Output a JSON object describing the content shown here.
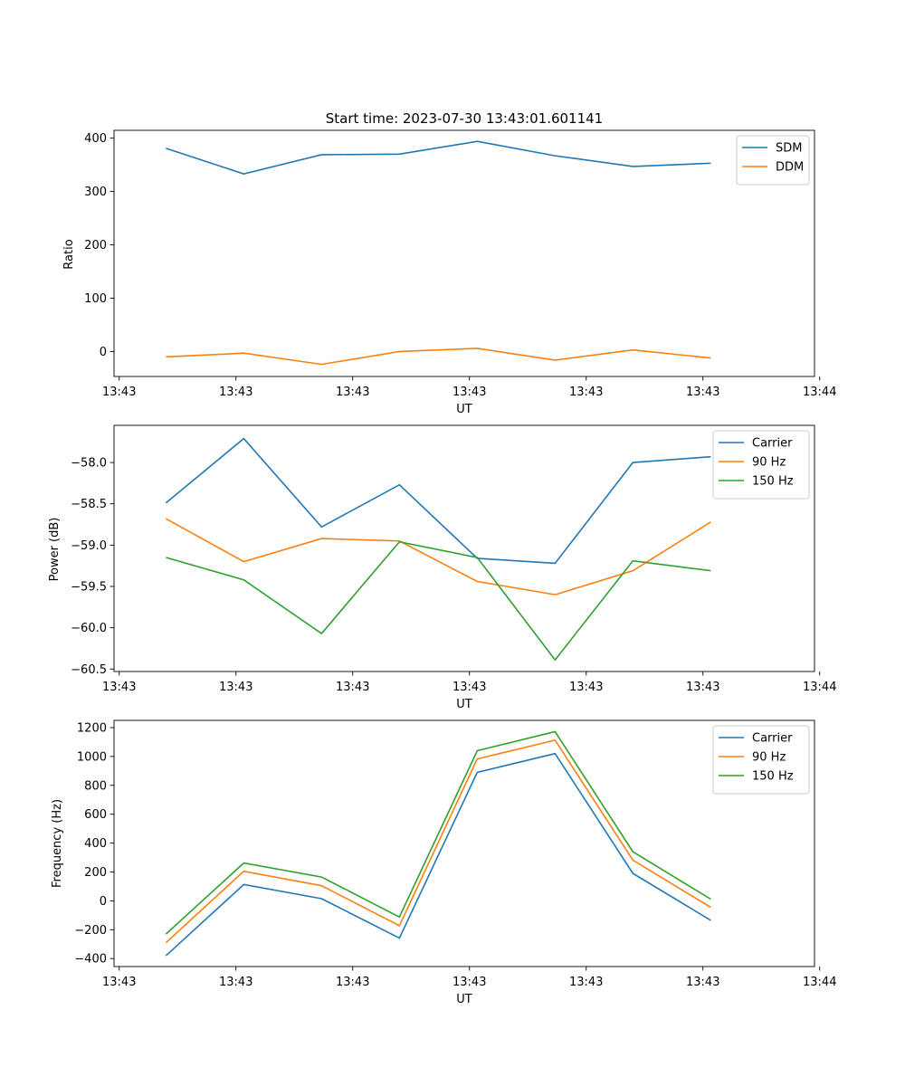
{
  "colors": {
    "blue": "#1f77b4",
    "orange": "#ff7f0e",
    "green": "#2ca02c"
  },
  "chart_data": [
    {
      "type": "line",
      "title": "Start time: 2023-07-30 13:43:01.601141",
      "xlabel": "UT",
      "ylabel": "Ratio",
      "x": [
        1,
        2,
        3,
        4,
        5,
        6,
        7,
        8
      ],
      "xlim": [
        0.3333,
        9.3333
      ],
      "xticks": [
        0.4,
        1.9,
        3.4,
        4.9,
        6.4,
        7.9,
        9.4
      ],
      "xtick_labels": [
        "13:43",
        "13:43",
        "13:43",
        "13:43",
        "13:43",
        "13:43",
        "13:44"
      ],
      "ylim": [
        -46.7,
        414.7
      ],
      "yticks": [
        0,
        100,
        200,
        300,
        400
      ],
      "ytick_labels": [
        "0",
        "100",
        "200",
        "300",
        "400"
      ],
      "legend": "top-right",
      "series": [
        {
          "name": "SDM",
          "color": "#1f77b4",
          "values": [
            381,
            333,
            369,
            370,
            394,
            367,
            347,
            353
          ]
        },
        {
          "name": "DDM",
          "color": "#ff7f0e",
          "values": [
            -10,
            -3,
            -24,
            0,
            6,
            -16,
            3,
            -12
          ]
        }
      ]
    },
    {
      "type": "line",
      "title": "",
      "xlabel": "UT",
      "ylabel": "Power (dB)",
      "x": [
        1,
        2,
        3,
        4,
        5,
        6,
        7,
        8
      ],
      "xlim": [
        0.3333,
        9.3333
      ],
      "xticks": [
        0.4,
        1.9,
        3.4,
        4.9,
        6.4,
        7.9,
        9.4
      ],
      "xtick_labels": [
        "13:43",
        "13:43",
        "13:43",
        "13:43",
        "13:43",
        "13:43",
        "13:44"
      ],
      "ylim": [
        -60.53,
        -57.55
      ],
      "yticks": [
        -60.5,
        -60.0,
        -59.5,
        -59.0,
        -58.5,
        -58.0
      ],
      "ytick_labels": [
        "−60.5",
        "−60.0",
        "−59.5",
        "−59.0",
        "−58.5",
        "−58.0"
      ],
      "legend": "top-right",
      "series": [
        {
          "name": "Carrier",
          "color": "#1f77b4",
          "values": [
            -58.49,
            -57.71,
            -58.78,
            -58.27,
            -59.16,
            -59.22,
            -58.0,
            -57.93
          ]
        },
        {
          "name": "90 Hz",
          "color": "#ff7f0e",
          "values": [
            -58.68,
            -59.2,
            -58.92,
            -58.95,
            -59.44,
            -59.6,
            -59.31,
            -58.72
          ]
        },
        {
          "name": "150 Hz",
          "color": "#2ca02c",
          "values": [
            -59.15,
            -59.42,
            -60.07,
            -58.96,
            -59.15,
            -60.39,
            -59.19,
            -59.31
          ]
        }
      ]
    },
    {
      "type": "line",
      "title": "",
      "xlabel": "UT",
      "ylabel": "Frequency (Hz)",
      "x": [
        1,
        2,
        3,
        4,
        5,
        6,
        7,
        8
      ],
      "xlim": [
        0.3333,
        9.3333
      ],
      "xticks": [
        0.4,
        1.9,
        3.4,
        4.9,
        6.4,
        7.9,
        9.4
      ],
      "xtick_labels": [
        "13:43",
        "13:43",
        "13:43",
        "13:43",
        "13:43",
        "13:43",
        "13:44"
      ],
      "ylim": [
        -455,
        1250
      ],
      "yticks": [
        -400,
        -200,
        0,
        200,
        400,
        600,
        800,
        1000,
        1200
      ],
      "ytick_labels": [
        "−400",
        "−200",
        "0",
        "200",
        "400",
        "600",
        "800",
        "1000",
        "1200"
      ],
      "legend": "top-right",
      "series": [
        {
          "name": "Carrier",
          "color": "#1f77b4",
          "values": [
            -380,
            113,
            15,
            -258,
            890,
            1020,
            190,
            -135
          ]
        },
        {
          "name": "90 Hz",
          "color": "#ff7f0e",
          "values": [
            -290,
            205,
            105,
            -172,
            983,
            1113,
            282,
            -45
          ]
        },
        {
          "name": "150 Hz",
          "color": "#2ca02c",
          "values": [
            -230,
            262,
            165,
            -112,
            1040,
            1172,
            340,
            12
          ]
        }
      ]
    }
  ]
}
